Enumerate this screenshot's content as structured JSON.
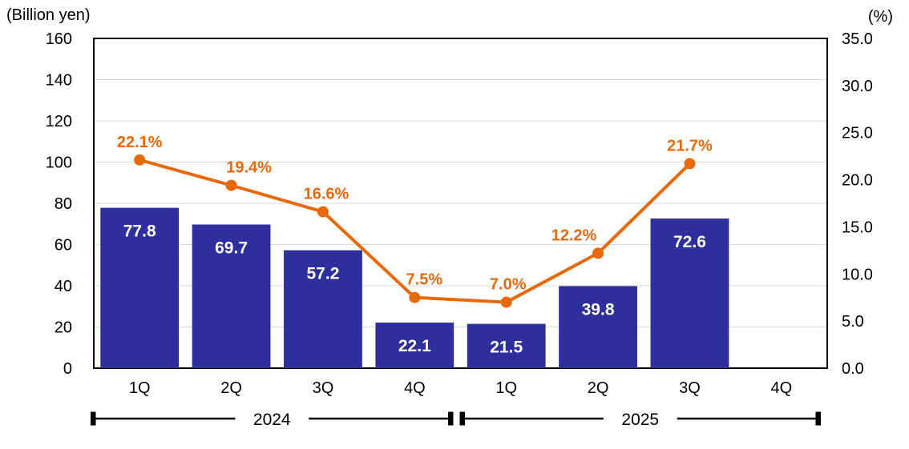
{
  "chart_data": {
    "type": "combo",
    "categories": [
      "1Q",
      "2Q",
      "3Q",
      "4Q",
      "1Q",
      "2Q",
      "3Q",
      "4Q"
    ],
    "year_groups": [
      {
        "label": "2024",
        "start_index": 0,
        "end_index": 3
      },
      {
        "label": "2025",
        "start_index": 4,
        "end_index": 7
      }
    ],
    "series": [
      {
        "name": "quarterly-amount",
        "type": "bar",
        "axis": "left",
        "unit": "Billion yen",
        "values": [
          77.8,
          69.7,
          57.2,
          22.1,
          21.5,
          39.8,
          72.6,
          null
        ],
        "labels": [
          "77.8",
          "69.7",
          "57.2",
          "22.1",
          "21.5",
          "39.8",
          "72.6",
          ""
        ],
        "color": "#2E2F9D",
        "label_color": "#FFFFFF"
      },
      {
        "name": "ratio-percent",
        "type": "line",
        "axis": "right",
        "unit": "%",
        "values": [
          22.1,
          19.4,
          16.6,
          7.5,
          7.0,
          12.2,
          21.7,
          null
        ],
        "labels": [
          "22.1%",
          "19.4%",
          "16.6%",
          "7.5%",
          "7.0%",
          "12.2%",
          "21.7%",
          ""
        ],
        "color": "#E8690B"
      }
    ],
    "left_axis": {
      "label": "(Billion yen)",
      "min": 0,
      "max": 160,
      "step": 20,
      "ticks": [
        "0",
        "20",
        "40",
        "60",
        "80",
        "100",
        "120",
        "140",
        "160"
      ]
    },
    "right_axis": {
      "label": "(%)",
      "min": 0,
      "max": 35,
      "step": 5,
      "ticks": [
        "0.0",
        "5.0",
        "10.0",
        "15.0",
        "20.0",
        "25.0",
        "30.0",
        "35.0"
      ]
    },
    "grid": true,
    "legend": "none",
    "colors": {
      "bar": "#2E2F9D",
      "line": "#E8690B",
      "gridline": "#D9D9D9",
      "axis": "#000000",
      "background": "#FFFFFF",
      "tick_text": "#000000"
    }
  }
}
